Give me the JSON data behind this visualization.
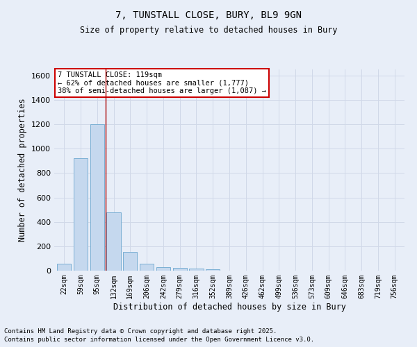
{
  "title1": "7, TUNSTALL CLOSE, BURY, BL9 9GN",
  "title2": "Size of property relative to detached houses in Bury",
  "xlabel": "Distribution of detached houses by size in Bury",
  "ylabel": "Number of detached properties",
  "bins": [
    "22sqm",
    "59sqm",
    "95sqm",
    "132sqm",
    "169sqm",
    "206sqm",
    "242sqm",
    "279sqm",
    "316sqm",
    "352sqm",
    "389sqm",
    "426sqm",
    "462sqm",
    "499sqm",
    "536sqm",
    "573sqm",
    "609sqm",
    "646sqm",
    "683sqm",
    "719sqm",
    "756sqm"
  ],
  "values": [
    55,
    920,
    1200,
    480,
    155,
    55,
    30,
    20,
    15,
    10,
    0,
    0,
    0,
    0,
    0,
    0,
    0,
    0,
    0,
    0,
    0
  ],
  "bar_color": "#c5d8ee",
  "bar_edge_color": "#7aafd4",
  "vline_color": "#aa0000",
  "annotation_text": "7 TUNSTALL CLOSE: 119sqm\n← 62% of detached houses are smaller (1,777)\n38% of semi-detached houses are larger (1,087) →",
  "annotation_box_color": "#ffffff",
  "annotation_box_edge": "#cc0000",
  "ylim": [
    0,
    1650
  ],
  "yticks": [
    0,
    200,
    400,
    600,
    800,
    1000,
    1200,
    1400,
    1600
  ],
  "footnote1": "Contains HM Land Registry data © Crown copyright and database right 2025.",
  "footnote2": "Contains public sector information licensed under the Open Government Licence v3.0.",
  "bg_color": "#e8eef8",
  "plot_bg_color": "#e8eef8",
  "grid_color": "#d0d8e8"
}
